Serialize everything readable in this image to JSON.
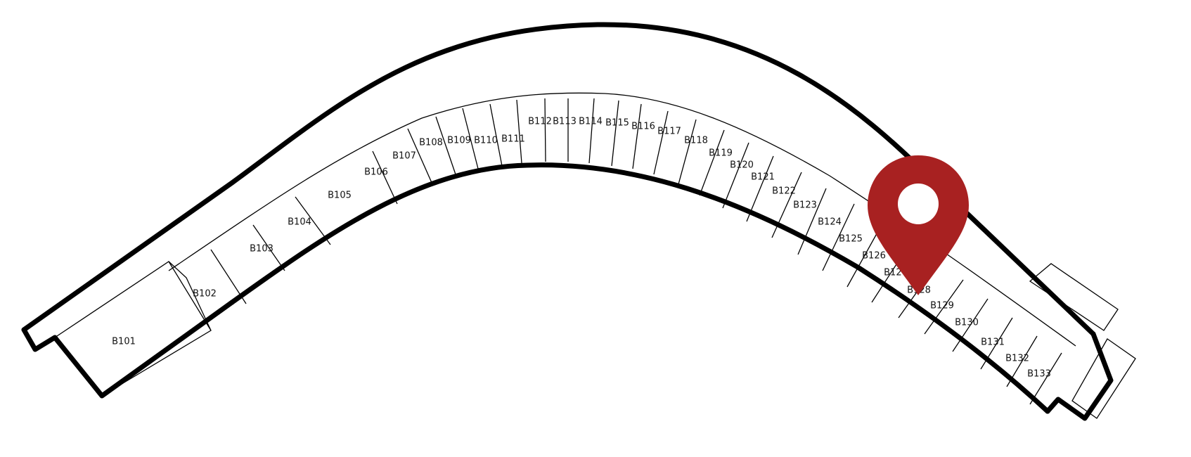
{
  "units": [
    {
      "id": "B101",
      "label": "B101"
    },
    {
      "id": "B102",
      "label": "B102"
    },
    {
      "id": "B103",
      "label": "B103"
    },
    {
      "id": "B104",
      "label": "B104"
    },
    {
      "id": "B105",
      "label": "B105"
    },
    {
      "id": "B106",
      "label": "B106"
    },
    {
      "id": "B107",
      "label": "B107"
    },
    {
      "id": "B108",
      "label": "B108"
    },
    {
      "id": "B109",
      "label": "B109"
    },
    {
      "id": "B110",
      "label": "B110"
    },
    {
      "id": "B111",
      "label": "B111"
    },
    {
      "id": "B112",
      "label": "B112"
    },
    {
      "id": "B113",
      "label": "B113"
    },
    {
      "id": "B114",
      "label": "B114"
    },
    {
      "id": "B115",
      "label": "B115"
    },
    {
      "id": "B116",
      "label": "B116"
    },
    {
      "id": "B117",
      "label": "B117"
    },
    {
      "id": "B118",
      "label": "B118"
    },
    {
      "id": "B119",
      "label": "B119"
    },
    {
      "id": "B120",
      "label": "B120"
    },
    {
      "id": "B121",
      "label": "B121"
    },
    {
      "id": "B122",
      "label": "B122"
    },
    {
      "id": "B123",
      "label": "B123"
    },
    {
      "id": "B124",
      "label": "B124"
    },
    {
      "id": "B125",
      "label": "B125"
    },
    {
      "id": "B126",
      "label": "B126"
    },
    {
      "id": "B127",
      "label": "B127"
    },
    {
      "id": "B128",
      "label": "B128"
    },
    {
      "id": "B129",
      "label": "B129"
    },
    {
      "id": "B130",
      "label": "B130"
    },
    {
      "id": "B131",
      "label": "B131"
    },
    {
      "id": "B132",
      "label": "B132"
    },
    {
      "id": "B133",
      "label": "B133"
    }
  ],
  "marker": {
    "unit": "B128",
    "color": "#a82121",
    "icon": "map-pin-icon"
  }
}
